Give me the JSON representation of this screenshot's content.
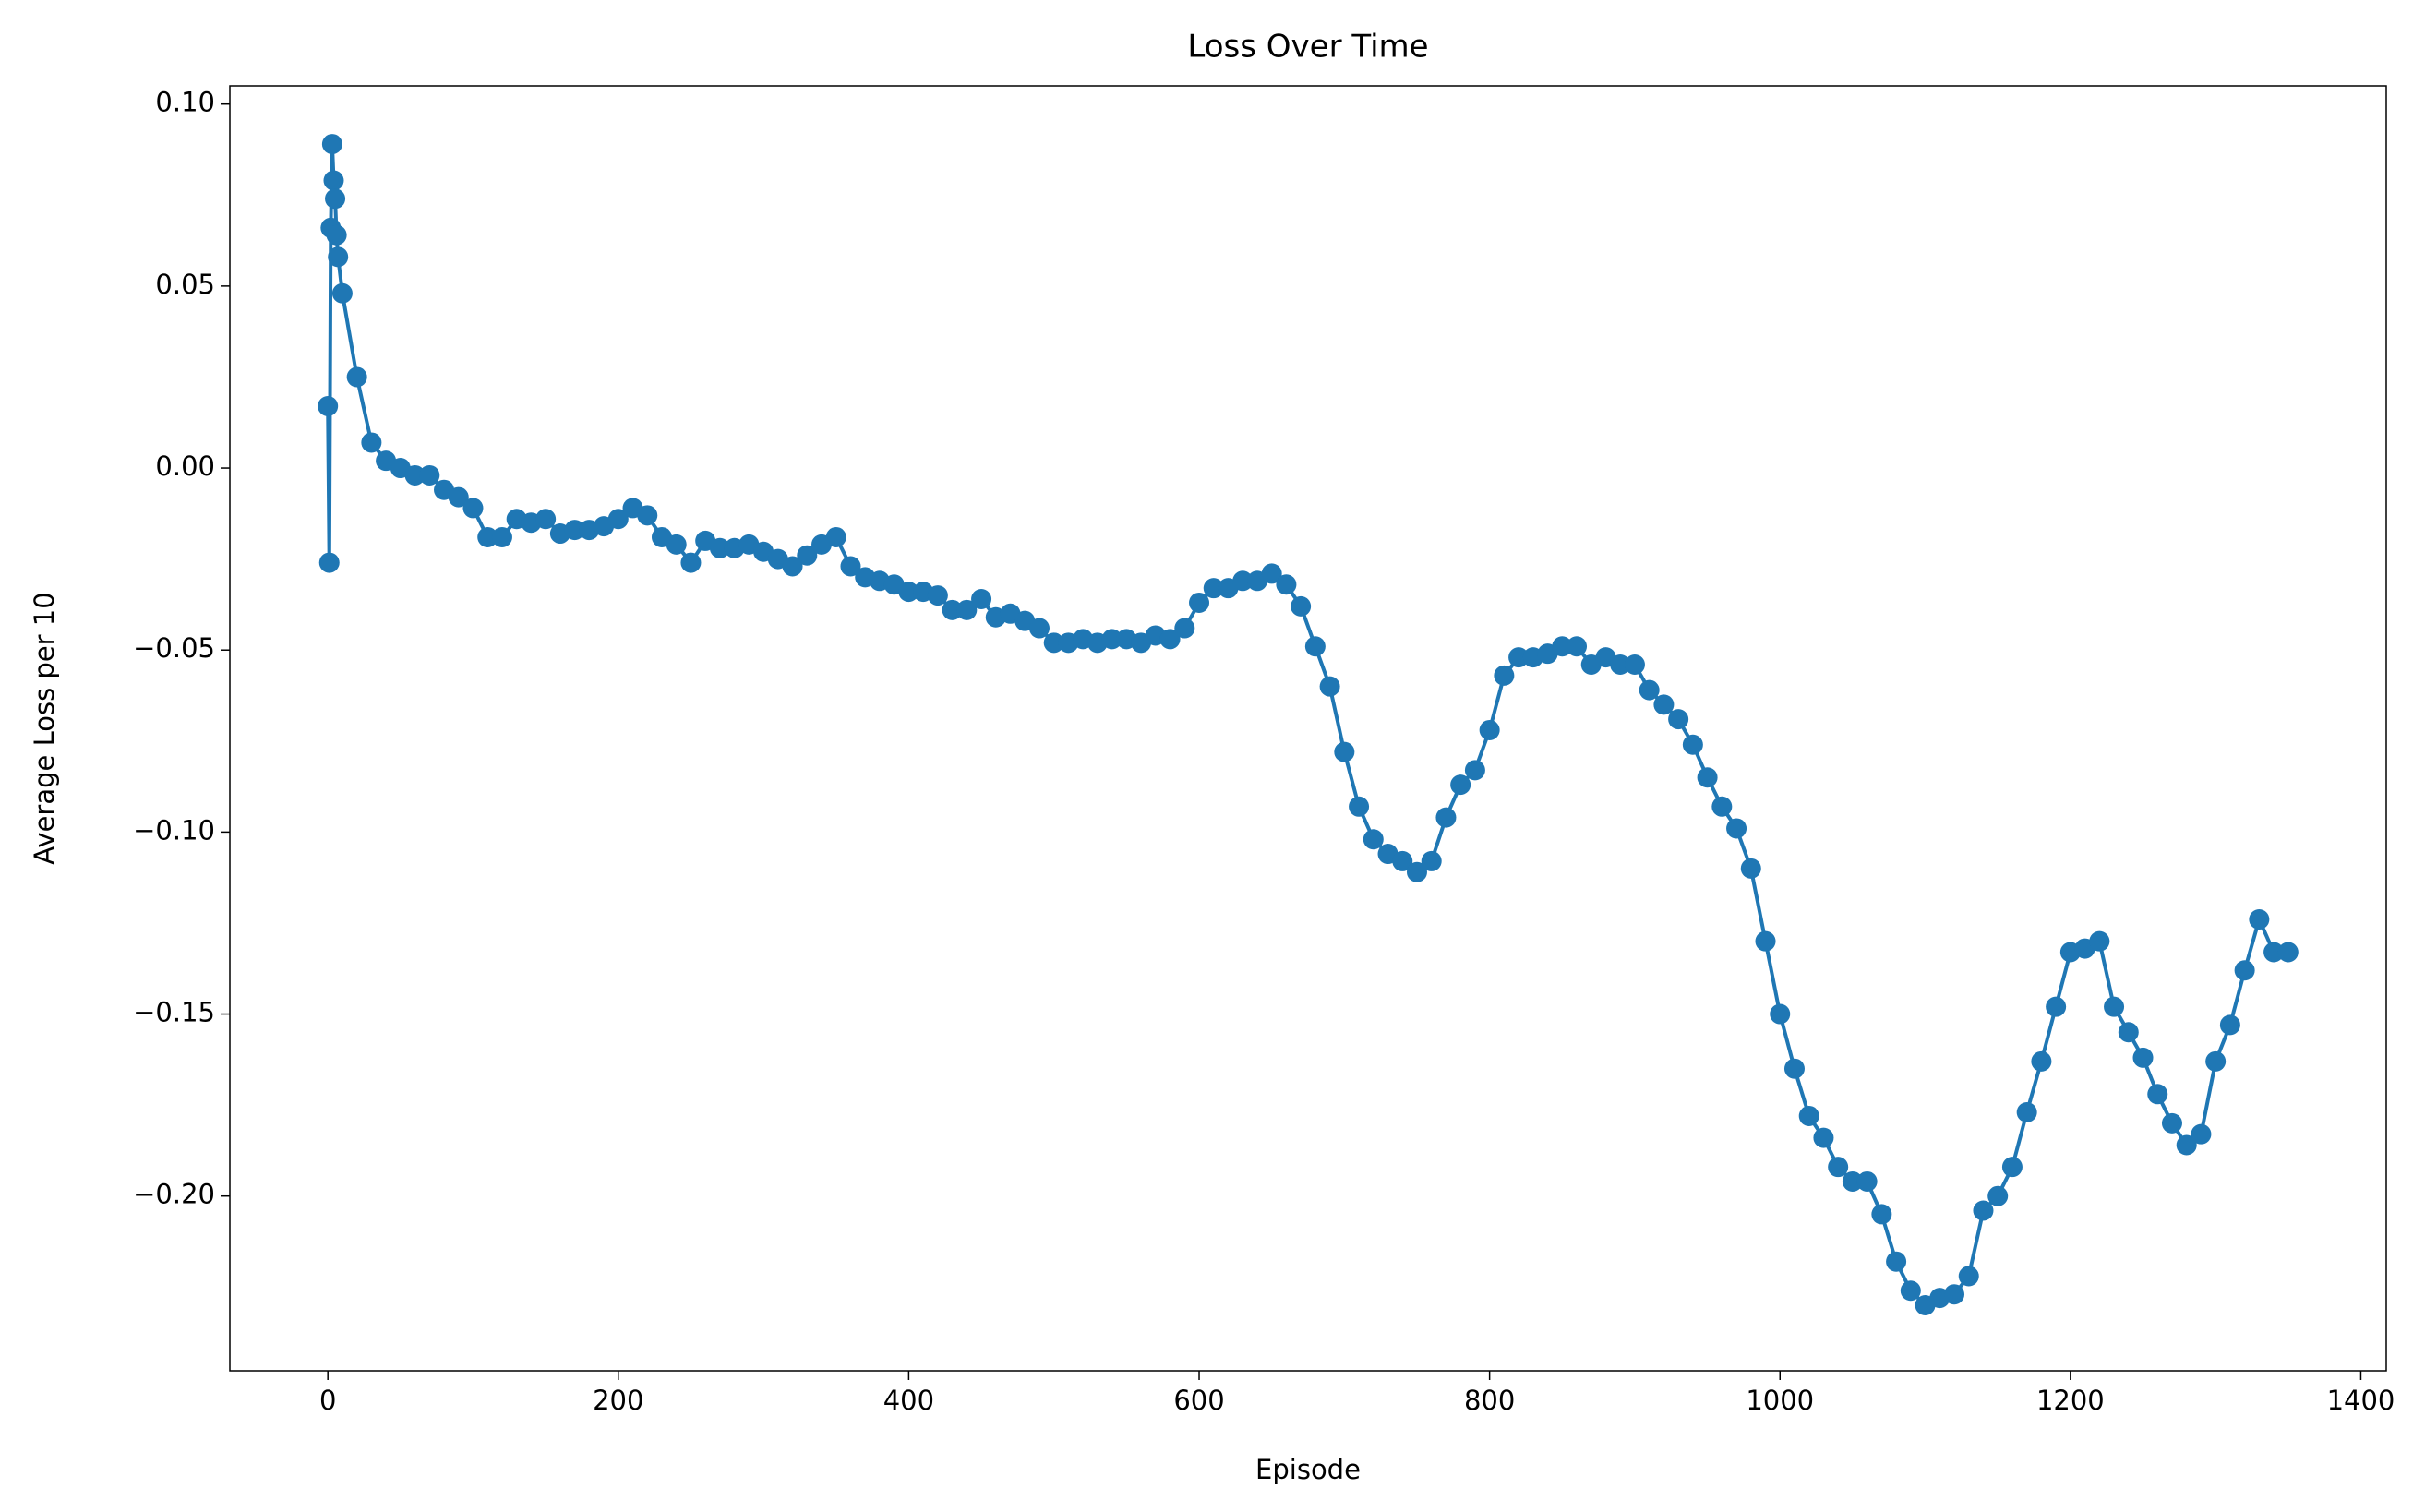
{
  "chart_data": {
    "type": "line",
    "title": "Loss Over Time",
    "x_label": "Episode",
    "y_label": "Average Loss per 10",
    "x": [
      0,
      1,
      2,
      3,
      4,
      5,
      6,
      7,
      10,
      20,
      30,
      40,
      50,
      60,
      70,
      80,
      90,
      100,
      110,
      120,
      130,
      140,
      150,
      160,
      170,
      180,
      190,
      200,
      210,
      220,
      230,
      240,
      250,
      260,
      270,
      280,
      290,
      300,
      310,
      320,
      330,
      340,
      350,
      360,
      370,
      380,
      390,
      400,
      410,
      420,
      430,
      440,
      450,
      460,
      470,
      480,
      490,
      500,
      510,
      520,
      530,
      540,
      550,
      560,
      570,
      580,
      590,
      600,
      610,
      620,
      630,
      640,
      650,
      660,
      670,
      680,
      690,
      700,
      710,
      720,
      730,
      740,
      750,
      760,
      770,
      780,
      790,
      800,
      810,
      820,
      830,
      840,
      850,
      860,
      870,
      880,
      890,
      900,
      910,
      920,
      930,
      940,
      950,
      960,
      970,
      980,
      990,
      1000,
      1010,
      1020,
      1030,
      1040,
      1050,
      1060,
      1070,
      1080,
      1090,
      1100,
      1110,
      1120,
      1130,
      1140,
      1150,
      1160,
      1170,
      1180,
      1190,
      1200,
      1210,
      1220,
      1230,
      1240,
      1250,
      1260,
      1270,
      1280,
      1290,
      1300,
      1310,
      1320,
      1330,
      1340,
      1350
    ],
    "series": [
      {
        "color": "#1f77b4",
        "values": [
          0.017,
          -0.026,
          0.066,
          0.089,
          0.079,
          0.074,
          0.064,
          0.058,
          0.048,
          0.025,
          0.007,
          0.002,
          0.0,
          -0.002,
          -0.002,
          -0.006,
          -0.008,
          -0.011,
          -0.019,
          -0.019,
          -0.014,
          -0.015,
          -0.014,
          -0.018,
          -0.017,
          -0.017,
          -0.016,
          -0.014,
          -0.011,
          -0.013,
          -0.019,
          -0.021,
          -0.026,
          -0.02,
          -0.022,
          -0.022,
          -0.021,
          -0.023,
          -0.025,
          -0.027,
          -0.024,
          -0.021,
          -0.019,
          -0.027,
          -0.03,
          -0.031,
          -0.032,
          -0.034,
          -0.034,
          -0.035,
          -0.039,
          -0.039,
          -0.036,
          -0.041,
          -0.04,
          -0.042,
          -0.044,
          -0.048,
          -0.048,
          -0.047,
          -0.048,
          -0.047,
          -0.047,
          -0.048,
          -0.046,
          -0.047,
          -0.044,
          -0.037,
          -0.033,
          -0.033,
          -0.031,
          -0.031,
          -0.029,
          -0.032,
          -0.038,
          -0.049,
          -0.06,
          -0.078,
          -0.093,
          -0.102,
          -0.106,
          -0.108,
          -0.111,
          -0.108,
          -0.096,
          -0.087,
          -0.083,
          -0.072,
          -0.057,
          -0.052,
          -0.052,
          -0.051,
          -0.049,
          -0.049,
          -0.054,
          -0.052,
          -0.054,
          -0.054,
          -0.061,
          -0.065,
          -0.069,
          -0.076,
          -0.085,
          -0.093,
          -0.099,
          -0.11,
          -0.13,
          -0.15,
          -0.165,
          -0.178,
          -0.184,
          -0.192,
          -0.196,
          -0.196,
          -0.205,
          -0.218,
          -0.226,
          -0.23,
          -0.228,
          -0.227,
          -0.222,
          -0.204,
          -0.2,
          -0.192,
          -0.177,
          -0.163,
          -0.148,
          -0.133,
          -0.132,
          -0.13,
          -0.148,
          -0.155,
          -0.162,
          -0.172,
          -0.18,
          -0.186,
          -0.183,
          -0.163,
          -0.153,
          -0.138,
          -0.124,
          -0.133,
          -0.133
        ]
      }
    ],
    "xlim": [
      -67.5,
      1417.5
    ],
    "ylim": [
      -0.248,
      0.105
    ],
    "xticks": [
      0,
      200,
      400,
      600,
      800,
      1000,
      1200,
      1400
    ],
    "yticks": [
      {
        "value": -0.2,
        "label": "−0.20"
      },
      {
        "value": -0.15,
        "label": "−0.15"
      },
      {
        "value": -0.1,
        "label": "−0.10"
      },
      {
        "value": -0.05,
        "label": "−0.05"
      },
      {
        "value": 0,
        "label": "0.00"
      },
      {
        "value": 0.05,
        "label": "0.05"
      },
      {
        "value": 0.1,
        "label": "0.10"
      }
    ],
    "markers": true
  }
}
